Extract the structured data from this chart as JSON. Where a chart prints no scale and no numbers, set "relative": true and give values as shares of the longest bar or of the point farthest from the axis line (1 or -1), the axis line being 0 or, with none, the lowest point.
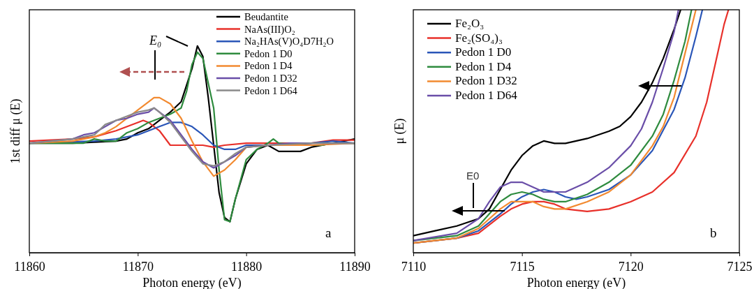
{
  "chart_data": [
    {
      "type": "line",
      "relative": true,
      "xlabel": "Photon energy (eV)",
      "ylabel": "1st diff μ (E)",
      "xlim": [
        11860,
        11890
      ],
      "xticks": [
        11860,
        11870,
        11880,
        11890
      ],
      "tick_labels": "x",
      "legend": "top right",
      "annotations": [
        "E₀",
        "a"
      ],
      "series": [
        {
          "name": "Beudantite",
          "color": "#000000",
          "x": [
            11860,
            11864,
            11868,
            11869,
            11870,
            11871,
            11872,
            11873,
            11874,
            11875,
            11875.5,
            11876,
            11876.5,
            11877,
            11877.5,
            11878,
            11878.5,
            11879,
            11880,
            11881,
            11882,
            11883,
            11884,
            11885,
            11886,
            11888,
            11890
          ],
          "values": [
            0.53,
            0.53,
            0.54,
            0.55,
            0.58,
            0.6,
            0.64,
            0.68,
            0.73,
            0.89,
            1.0,
            0.95,
            0.75,
            0.52,
            0.29,
            0.17,
            0.15,
            0.26,
            0.43,
            0.5,
            0.52,
            0.49,
            0.49,
            0.49,
            0.51,
            0.53,
            0.55
          ]
        },
        {
          "name": "NaAs(III)O₂",
          "color": "#e8302a",
          "x": [
            11860,
            11864,
            11866,
            11868,
            11870,
            11870.5,
            11871,
            11872,
            11873,
            11874,
            11875,
            11876,
            11877,
            11878,
            11880,
            11882,
            11884,
            11886,
            11888,
            11890
          ],
          "values": [
            0.54,
            0.55,
            0.56,
            0.59,
            0.63,
            0.64,
            0.63,
            0.59,
            0.52,
            0.52,
            0.52,
            0.52,
            0.51,
            0.52,
            0.53,
            0.53,
            0.53,
            0.53,
            0.545,
            0.545
          ]
        },
        {
          "name": "Na₂HAs(V)O₄D7H₂O",
          "color": "#2a56b8",
          "x": [
            11860,
            11866,
            11868,
            11869,
            11870,
            11871,
            11872,
            11873,
            11874,
            11875,
            11876,
            11877,
            11878,
            11879,
            11880,
            11882,
            11884,
            11886,
            11888,
            11890
          ],
          "values": [
            0.53,
            0.54,
            0.55,
            0.56,
            0.57,
            0.59,
            0.61,
            0.63,
            0.63,
            0.61,
            0.57,
            0.52,
            0.5,
            0.5,
            0.52,
            0.52,
            0.52,
            0.53,
            0.54,
            0.53
          ]
        },
        {
          "name": "Pedon 1 D0",
          "color": "#2e8b3e",
          "x": [
            11860,
            11865,
            11866,
            11867,
            11868,
            11869,
            11870,
            11871,
            11872,
            11873,
            11874,
            11874.5,
            11875,
            11875.5,
            11876,
            11877,
            11877.5,
            11878,
            11878.5,
            11879,
            11880,
            11881,
            11882,
            11882.5,
            11883,
            11885,
            11887,
            11888,
            11890
          ],
          "values": [
            0.53,
            0.53,
            0.55,
            0.54,
            0.54,
            0.58,
            0.6,
            0.63,
            0.65,
            0.67,
            0.7,
            0.78,
            0.91,
            0.97,
            0.94,
            0.7,
            0.4,
            0.16,
            0.15,
            0.26,
            0.45,
            0.5,
            0.53,
            0.55,
            0.53,
            0.52,
            0.52,
            0.53,
            0.53
          ]
        },
        {
          "name": "Pedon 1 D4",
          "color": "#f28a30",
          "x": [
            11860,
            11864,
            11866,
            11867,
            11868,
            11869,
            11870,
            11871,
            11871.5,
            11872,
            11873,
            11874,
            11875,
            11876,
            11877,
            11878,
            11879,
            11880,
            11882,
            11884,
            11886,
            11890
          ],
          "values": [
            0.53,
            0.54,
            0.56,
            0.58,
            0.61,
            0.65,
            0.69,
            0.73,
            0.75,
            0.75,
            0.72,
            0.65,
            0.54,
            0.44,
            0.37,
            0.4,
            0.45,
            0.51,
            0.52,
            0.52,
            0.52,
            0.53
          ]
        },
        {
          "name": "Pedon 1 D32",
          "color": "#6a4ea8",
          "x": [
            11860,
            11864,
            11865,
            11866,
            11867,
            11868,
            11869,
            11870,
            11871,
            11871.5,
            11872,
            11873,
            11874,
            11875,
            11876,
            11877,
            11878,
            11879,
            11880,
            11882,
            11884,
            11886,
            11890
          ],
          "values": [
            0.53,
            0.55,
            0.57,
            0.58,
            0.61,
            0.64,
            0.65,
            0.67,
            0.68,
            0.7,
            0.68,
            0.64,
            0.57,
            0.5,
            0.44,
            0.41,
            0.44,
            0.47,
            0.51,
            0.52,
            0.53,
            0.53,
            0.53
          ]
        },
        {
          "name": "Pedon 1 D64",
          "color": "#8a8a8a",
          "x": [
            11860,
            11864,
            11865,
            11866,
            11867,
            11868,
            11869,
            11870,
            11871,
            11871.5,
            11872,
            11873,
            11874,
            11875,
            11876,
            11877,
            11878,
            11879,
            11880,
            11882,
            11886,
            11890
          ],
          "values": [
            0.53,
            0.55,
            0.56,
            0.57,
            0.62,
            0.64,
            0.66,
            0.68,
            0.69,
            0.7,
            0.68,
            0.63,
            0.56,
            0.49,
            0.43,
            0.42,
            0.44,
            0.48,
            0.51,
            0.52,
            0.53,
            0.53
          ]
        }
      ]
    },
    {
      "type": "line",
      "relative": true,
      "xlabel": "Photon energy (eV)",
      "ylabel": "μ (E)",
      "xlim": [
        7110,
        7125
      ],
      "xticks": [
        7110,
        7115,
        7120,
        7125
      ],
      "tick_labels": "x",
      "legend": "top left",
      "annotations": [
        "E0",
        "b"
      ],
      "series": [
        {
          "name": "Fe₂O₃",
          "color": "#000000",
          "x": [
            7110,
            7111,
            7112,
            7113,
            7113.5,
            7114,
            7114.5,
            7115,
            7115.5,
            7116,
            7116.5,
            7117,
            7118,
            7119,
            7119.5,
            7120,
            7120.5,
            7121,
            7121.5,
            7122,
            7122.3
          ],
          "values": [
            0.07,
            0.09,
            0.11,
            0.14,
            0.18,
            0.26,
            0.34,
            0.4,
            0.44,
            0.46,
            0.45,
            0.45,
            0.47,
            0.5,
            0.52,
            0.56,
            0.62,
            0.7,
            0.8,
            0.92,
            1.0
          ]
        },
        {
          "name": "Fe₂(SO₄)₃",
          "color": "#e8302a",
          "x": [
            7110,
            7112,
            7113,
            7114,
            7114.5,
            7115,
            7115.5,
            7116,
            7116.5,
            7117,
            7118,
            7119,
            7120,
            7121,
            7122,
            7123,
            7123.5,
            7124,
            7124.3,
            7124.5
          ],
          "values": [
            0.04,
            0.06,
            0.08,
            0.15,
            0.18,
            0.2,
            0.21,
            0.21,
            0.2,
            0.18,
            0.17,
            0.18,
            0.21,
            0.25,
            0.33,
            0.48,
            0.62,
            0.82,
            0.94,
            1.0
          ]
        },
        {
          "name": "Pedon 1 D0",
          "color": "#2a56b8",
          "x": [
            7110,
            7112,
            7113,
            7114,
            7114.5,
            7115,
            7115.5,
            7116,
            7116.5,
            7117,
            7117.5,
            7118,
            7119,
            7120,
            7121,
            7122,
            7122.5,
            7123,
            7123.3
          ],
          "values": [
            0.04,
            0.06,
            0.09,
            0.16,
            0.2,
            0.23,
            0.25,
            0.26,
            0.25,
            0.23,
            0.22,
            0.23,
            0.26,
            0.32,
            0.42,
            0.59,
            0.72,
            0.89,
            1.0
          ]
        },
        {
          "name": "Pedon 1 D4",
          "color": "#2e8b3e",
          "x": [
            7110,
            7112,
            7113,
            7113.5,
            7114,
            7114.5,
            7115,
            7115.5,
            7116,
            7116.5,
            7117,
            7118,
            7119,
            7120,
            7121,
            7121.5,
            7122,
            7122.5,
            7122.8
          ],
          "values": [
            0.05,
            0.07,
            0.11,
            0.16,
            0.21,
            0.24,
            0.25,
            0.24,
            0.22,
            0.21,
            0.21,
            0.24,
            0.29,
            0.36,
            0.48,
            0.57,
            0.71,
            0.87,
            1.0
          ]
        },
        {
          "name": "Pedon 1 D32",
          "color": "#f28a30",
          "x": [
            7110,
            7112,
            7113,
            7114,
            7114.5,
            7115,
            7115.5,
            7116,
            7116.5,
            7117,
            7118,
            7119,
            7120,
            7121,
            7121.5,
            7122,
            7122.5,
            7123
          ],
          "values": [
            0.04,
            0.06,
            0.1,
            0.18,
            0.21,
            0.21,
            0.21,
            0.19,
            0.18,
            0.18,
            0.21,
            0.25,
            0.32,
            0.44,
            0.52,
            0.64,
            0.82,
            1.0
          ]
        },
        {
          "name": "Pedon 1 D64",
          "color": "#6a4ea8",
          "x": [
            7110,
            7112,
            7113,
            7113.5,
            7114,
            7114.5,
            7115,
            7115.5,
            7116,
            7116.5,
            7117,
            7118,
            7119,
            7120,
            7120.5,
            7121,
            7121.5,
            7122,
            7122.2
          ],
          "values": [
            0.05,
            0.08,
            0.14,
            0.21,
            0.27,
            0.29,
            0.29,
            0.27,
            0.25,
            0.25,
            0.25,
            0.29,
            0.35,
            0.44,
            0.51,
            0.62,
            0.76,
            0.91,
            1.0
          ]
        }
      ]
    }
  ]
}
